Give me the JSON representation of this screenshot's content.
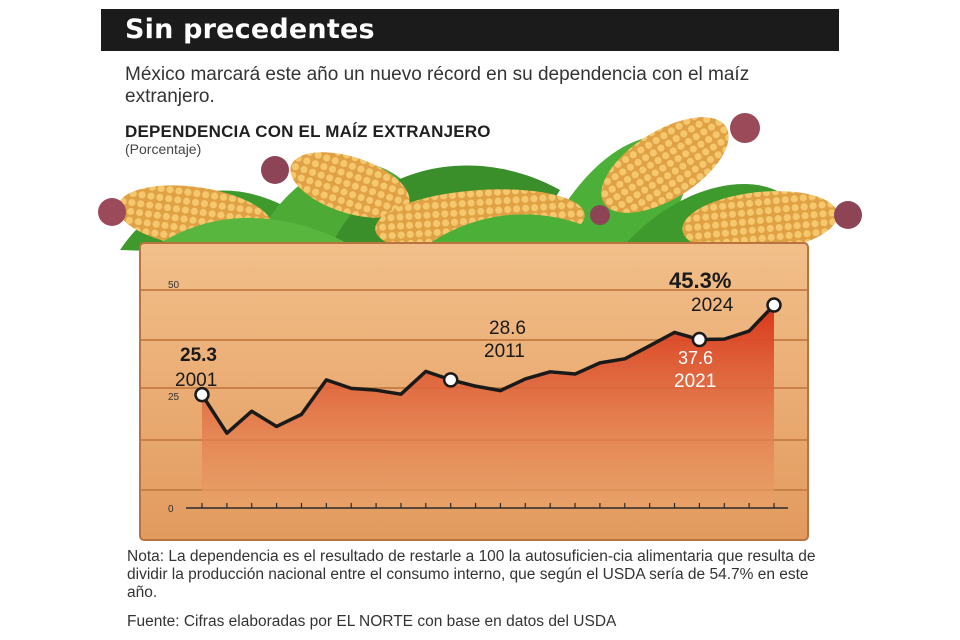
{
  "header": {
    "title": "Sin precedentes",
    "subtitle": "México marcará este año un nuevo récord en su dependencia con el maíz extranjero."
  },
  "chart_data": {
    "type": "area",
    "title": "DEPENDENCIA CON EL MAÍZ EXTRANJERO",
    "subtitle": "(Porcentaje)",
    "xlabel": "",
    "ylabel": "",
    "xlim": [
      2001,
      2024
    ],
    "ylim": [
      0,
      50
    ],
    "y_ticks": [
      "0",
      "25",
      "50"
    ],
    "grid": false,
    "legend": "none",
    "x": [
      2001,
      2002,
      2003,
      2004,
      2005,
      2006,
      2007,
      2008,
      2009,
      2010,
      2011,
      2012,
      2013,
      2014,
      2015,
      2016,
      2017,
      2018,
      2019,
      2020,
      2021,
      2022,
      2023,
      2024
    ],
    "series": [
      {
        "values": [
          25.3,
          16.7,
          21.6,
          18.2,
          20.9,
          28.6,
          26.7,
          26.3,
          25.4,
          30.5,
          28.6,
          27.2,
          26.2,
          28.8,
          30.4,
          29.9,
          32.4,
          33.3,
          36.2,
          39.2,
          37.6,
          37.7,
          39.5,
          45.3
        ]
      }
    ],
    "annotations": [
      {
        "year": 2001,
        "value_label": "25.3",
        "year_label": "2001"
      },
      {
        "year": 2011,
        "value_label": "28.6",
        "year_label": "2011"
      },
      {
        "year": 2021,
        "value_label": "37.6",
        "year_label": "2021"
      },
      {
        "year": 2024,
        "value_label": "45.3%",
        "year_label": "2024"
      }
    ],
    "colors": {
      "area_top": "#d8361a",
      "area_bottom": "#eaa36a",
      "line": "#1a1a1a",
      "wood": "#e8a870"
    }
  },
  "footer": {
    "note": "Nota: La dependencia es el resultado de restarle a 100 la autosuficien-cia alimentaria que resulta de dividir la producción nacional entre el consumo interno, que según el USDA sería de 54.7% en este año.",
    "source": "Fuente: Cifras elaboradas por EL NORTE con base en datos del USDA"
  }
}
